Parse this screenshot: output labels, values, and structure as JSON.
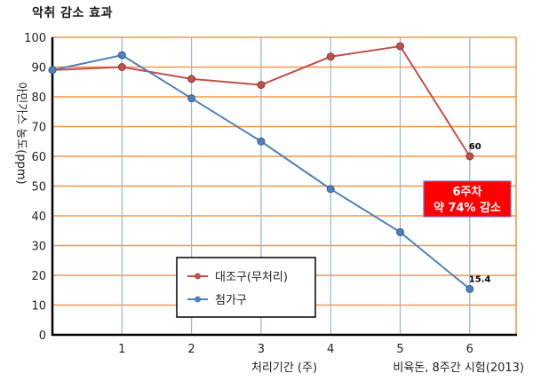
{
  "chart_data": {
    "type": "line",
    "title": "악취 감소 효과",
    "xlabel": "처리기간 (주)",
    "ylabel": "아민가스 농도(ppm)",
    "x": [
      0,
      1,
      2,
      3,
      4,
      5,
      6
    ],
    "x_tick_labels": [
      "",
      "1",
      "2",
      "3",
      "4",
      "5",
      "6"
    ],
    "y_ticks": [
      0,
      10,
      20,
      30,
      40,
      50,
      60,
      70,
      80,
      90,
      100
    ],
    "ylim": [
      0,
      100
    ],
    "xlim": [
      0,
      6.67
    ],
    "grid": {
      "horizontal": true,
      "vertical": true,
      "horizontal_color": "#f79646",
      "vertical_color": "#95b3d7"
    },
    "legend_position": "lower-center",
    "series": [
      {
        "name": "대조구(무처리)",
        "color": "#c0504d",
        "values": [
          89,
          90,
          86,
          84,
          93.5,
          97,
          60
        ]
      },
      {
        "name": "첨가구",
        "color": "#4f81bd",
        "values": [
          89,
          94,
          79.5,
          65,
          49,
          34.5,
          15.4
        ]
      }
    ],
    "data_labels": [
      {
        "series": "대조구(무처리)",
        "x": 6,
        "text": "60"
      },
      {
        "series": "첨가구",
        "x": 6,
        "text": "15.4"
      }
    ],
    "annotations": [
      {
        "type": "box",
        "lines": [
          "6주차",
          "약 74% 감소"
        ],
        "background": "#ff0000",
        "text_color": "#ffffff"
      }
    ],
    "source_note": "비육돈, 8주간 시험(2013)"
  }
}
